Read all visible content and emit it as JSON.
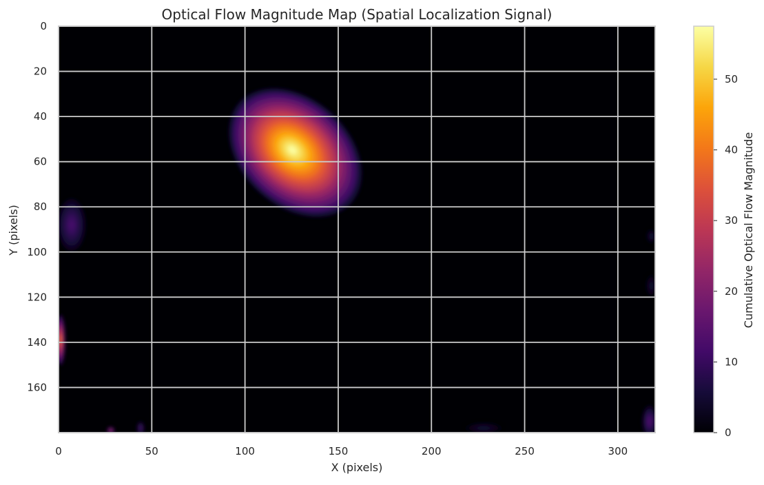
{
  "chart_data": {
    "type": "heatmap",
    "title": "Optical Flow Magnitude Map (Spatial Localization Signal)",
    "xlabel": "X (pixels)",
    "ylabel": "Y (pixels)",
    "colorbar_label": "Cumulative Optical Flow Magnitude",
    "colormap": "inferno",
    "xlim": [
      0,
      320
    ],
    "ylim": [
      180,
      0
    ],
    "y_inverted": true,
    "clim": [
      0,
      57.5
    ],
    "xticks": [
      0,
      50,
      100,
      150,
      200,
      250,
      300
    ],
    "yticks": [
      0,
      20,
      40,
      60,
      80,
      100,
      120,
      140,
      160
    ],
    "colorbar_ticks": [
      0,
      10,
      20,
      30,
      40,
      50
    ],
    "grid": true,
    "background_value": 0,
    "hotspots": [
      {
        "label": "main moving object",
        "x_center": 127,
        "y_center": 56,
        "peak": 57,
        "extent_x": [
          92,
          162
        ],
        "extent_y": [
          27,
          93
        ]
      },
      {
        "label": "left patch",
        "x_center": 7,
        "y_center": 88,
        "peak": 12,
        "extent_x": [
          0,
          15
        ],
        "extent_y": [
          77,
          100
        ]
      },
      {
        "label": "left-edge spot",
        "x_center": 1,
        "y_center": 139,
        "peak": 38,
        "extent_x": [
          0,
          5
        ],
        "extent_y": [
          128,
          150
        ]
      },
      {
        "label": "bottom-right patch",
        "x_center": 317,
        "y_center": 175,
        "peak": 13,
        "extent_x": [
          312,
          320
        ],
        "extent_y": [
          166,
          180
        ]
      },
      {
        "label": "bottom spot 1",
        "x_center": 28,
        "y_center": 179,
        "peak": 25,
        "extent_x": [
          26,
          30
        ],
        "extent_y": [
          177,
          180
        ]
      },
      {
        "label": "bottom spot 2",
        "x_center": 44,
        "y_center": 178,
        "peak": 12,
        "extent_x": [
          42,
          46
        ],
        "extent_y": [
          174,
          180
        ]
      },
      {
        "label": "bottom patch",
        "x_center": 228,
        "y_center": 178,
        "peak": 5,
        "extent_x": [
          218,
          238
        ],
        "extent_y": [
          175,
          180
        ]
      },
      {
        "label": "right-edge spot 1",
        "x_center": 318,
        "y_center": 93,
        "peak": 6,
        "extent_x": [
          315,
          320
        ],
        "extent_y": [
          90,
          96
        ]
      },
      {
        "label": "right-edge spot 2",
        "x_center": 318,
        "y_center": 115,
        "peak": 5,
        "extent_x": [
          314,
          320
        ],
        "extent_y": [
          110,
          120
        ]
      }
    ]
  }
}
